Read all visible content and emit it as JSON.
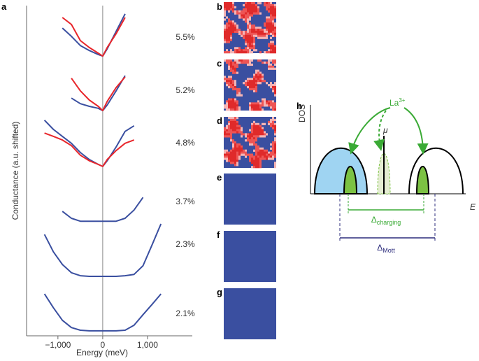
{
  "chart_data": {
    "type": "line",
    "x_label": "Energy (meV)",
    "y_label": "Conductance (a.u. shifted)",
    "x": [
      -1300,
      -1100,
      -900,
      -700,
      -500,
      -300,
      -100,
      0,
      100,
      300,
      500,
      700,
      900,
      1100,
      1300
    ],
    "xlim": [
      -1700,
      2000
    ],
    "xticks": [
      {
        "value": -1000,
        "label": "−1,000"
      },
      0,
      {
        "value": 1000,
        "label": "1,000"
      }
    ],
    "ylim": [
      0,
      100
    ],
    "series": [
      {
        "name": "5.5%",
        "color": "#3a4fa0",
        "values": [
          null,
          null,
          93.2,
          90.7,
          87.9,
          86.4,
          85.2,
          84.7,
          86.9,
          92.2,
          97.5,
          null,
          null,
          null,
          null
        ]
      },
      {
        "name": "5.5%",
        "color": "#e8262b",
        "values": [
          null,
          null,
          96.4,
          94.3,
          89.4,
          87.3,
          85.6,
          84.7,
          87.3,
          91.5,
          96.4,
          null,
          null,
          null,
          null
        ]
      },
      {
        "name": "5.2%",
        "color": "#3a4fa0",
        "values": [
          null,
          null,
          null,
          72.0,
          70.3,
          69.5,
          68.9,
          68.2,
          69.9,
          74.2,
          78.8,
          null,
          null,
          null,
          null
        ]
      },
      {
        "name": "5.2%",
        "color": "#e8262b",
        "values": [
          null,
          null,
          null,
          78.0,
          74.2,
          71.4,
          69.5,
          68.2,
          71.0,
          75.2,
          78.4,
          null,
          null,
          null,
          null
        ]
      },
      {
        "name": "4.8%",
        "color": "#3a4fa0",
        "values": [
          65.3,
          62.5,
          60.4,
          58.3,
          55.5,
          53.4,
          51.9,
          51.3,
          53.0,
          57.2,
          61.9,
          63.6,
          null,
          null,
          null
        ]
      },
      {
        "name": "4.8%",
        "color": "#e8262b",
        "values": [
          61.4,
          60.4,
          59.3,
          57.6,
          54.7,
          53.0,
          51.9,
          51.3,
          53.4,
          56.1,
          58.3,
          59.3,
          null,
          null,
          null
        ]
      },
      {
        "name": "3.7%",
        "color": "#3a4fa0",
        "values": [
          null,
          null,
          37.7,
          35.6,
          34.7,
          34.7,
          34.7,
          34.7,
          34.7,
          34.7,
          35.6,
          38.1,
          41.9,
          null,
          null
        ]
      },
      {
        "name": "2.3%",
        "color": "#3a4fa0",
        "values": [
          30.7,
          25.4,
          21.6,
          19.1,
          18.2,
          18.0,
          18.0,
          18.0,
          18.0,
          18.0,
          18.2,
          18.6,
          21.2,
          27.5,
          33.9
        ]
      },
      {
        "name": "2.1%",
        "color": "#3a4fa0",
        "values": [
          12.7,
          8.5,
          4.7,
          2.5,
          1.7,
          1.5,
          1.5,
          1.5,
          1.5,
          1.5,
          1.7,
          3.2,
          6.4,
          9.5,
          12.7
        ]
      }
    ]
  },
  "panel_labels": [
    "a",
    "b",
    "c",
    "d",
    "e",
    "f",
    "g",
    "h"
  ],
  "diagram": {
    "y_axis": "DOS",
    "x_axis": "E",
    "dopant": {
      "text": "La",
      "superscript": "3+"
    },
    "chemical_potential": "μ",
    "charging_gap": {
      "symbol": "Δ",
      "subscript": "charging"
    },
    "mott_gap": {
      "symbol": "Δ",
      "subscript": "Mott"
    }
  }
}
